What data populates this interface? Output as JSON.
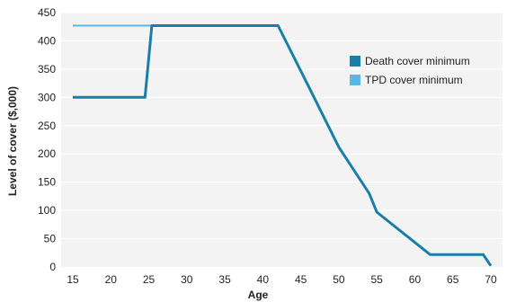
{
  "chart_data": {
    "type": "line",
    "title": "",
    "xlabel": "Age",
    "ylabel": "Level of cover ($,000)",
    "xlim": [
      15,
      70
    ],
    "ylim": [
      0,
      450
    ],
    "x_ticks": [
      15,
      20,
      25,
      30,
      35,
      40,
      45,
      50,
      55,
      60,
      65,
      70
    ],
    "y_ticks": [
      0,
      50,
      100,
      150,
      200,
      250,
      300,
      350,
      400,
      450
    ],
    "grid": "horizontal",
    "legend_position": "right",
    "series": [
      {
        "name": "TPD cover minimum",
        "color": "#5bb8e4",
        "points": [
          [
            15,
            427
          ],
          [
            42,
            427
          ],
          [
            46,
            320
          ],
          [
            50,
            212
          ],
          [
            54,
            130
          ],
          [
            55,
            97
          ],
          [
            62,
            22
          ],
          [
            69,
            22
          ],
          [
            70,
            2
          ]
        ]
      },
      {
        "name": "Death cover minimum",
        "color": "#1a7fa8",
        "points": [
          [
            15,
            300
          ],
          [
            24.5,
            300
          ],
          [
            25.4,
            427
          ],
          [
            42,
            427
          ],
          [
            46,
            320
          ],
          [
            50,
            212
          ],
          [
            54,
            130
          ],
          [
            55,
            97
          ],
          [
            62,
            22
          ],
          [
            69,
            22
          ],
          [
            70,
            2
          ]
        ]
      }
    ],
    "legend_order": [
      "Death cover minimum",
      "TPD cover minimum"
    ]
  }
}
